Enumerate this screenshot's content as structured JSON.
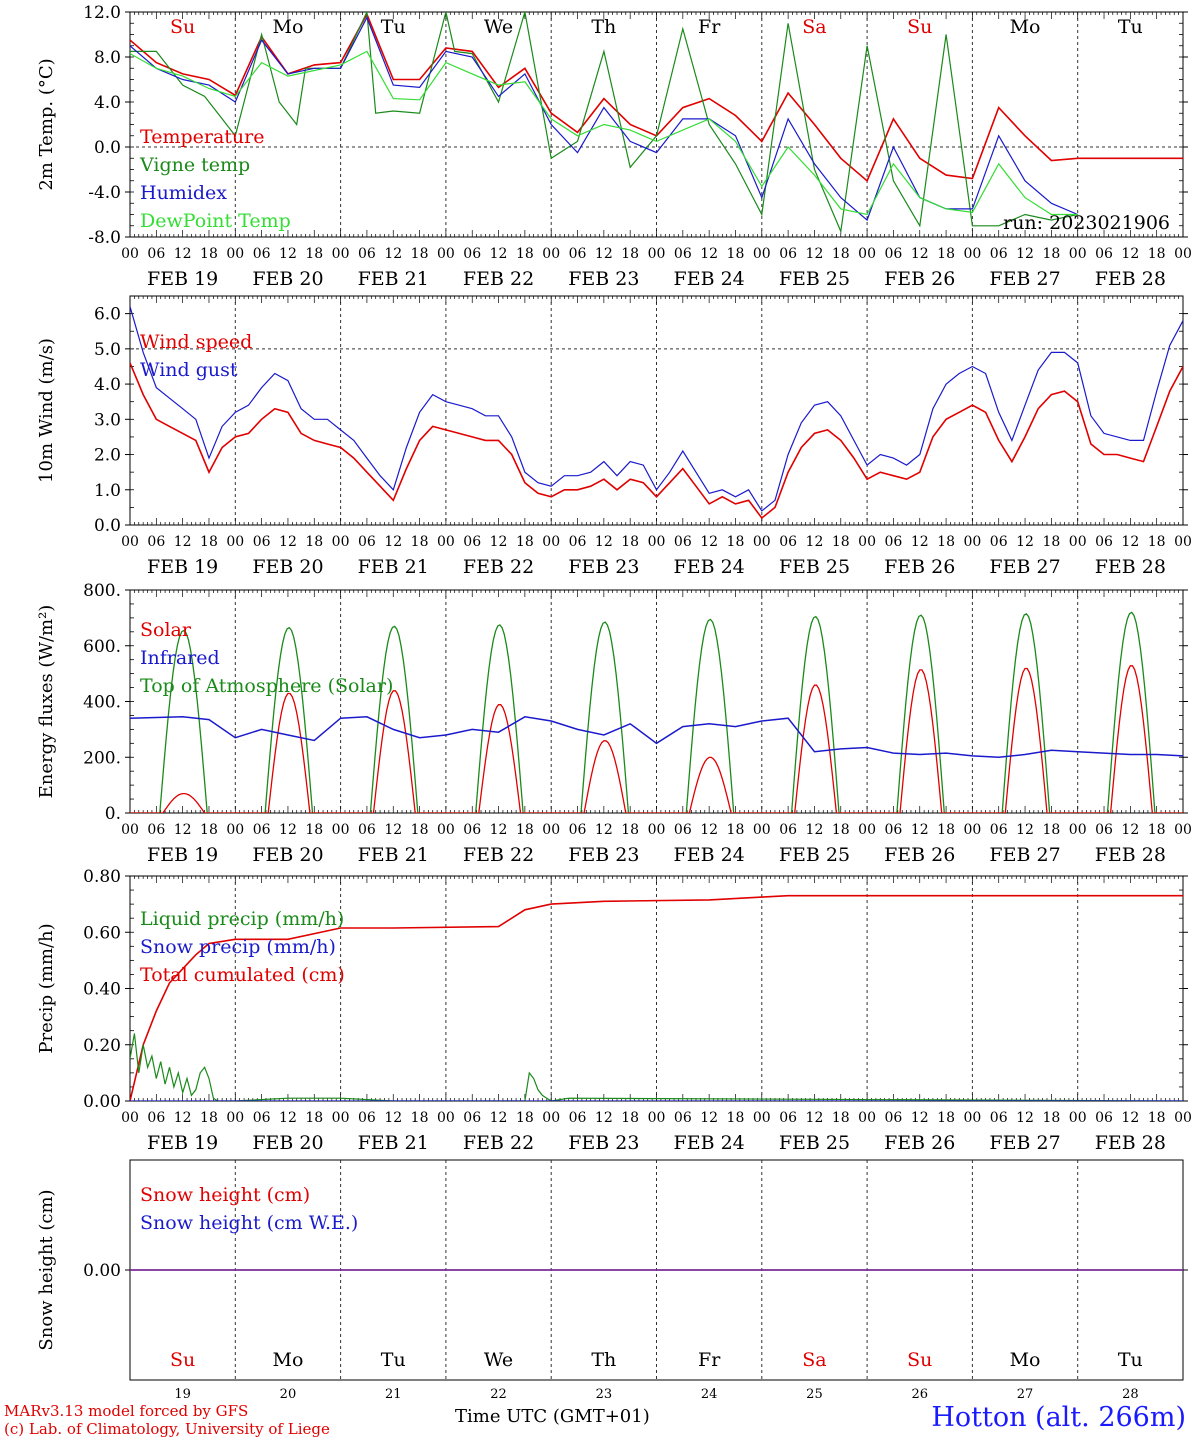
{
  "meta": {
    "credit_line1": "MARv3.13 model forced by GFS",
    "credit_line2": "(c) Lab. of Climatology, University of Liege",
    "time_label": "Time UTC (GMT+01)",
    "station": "Hotton (alt. 266m)",
    "run": "run: 2023021906"
  },
  "colors": {
    "red": "#e00000",
    "green": "#1a8a1a",
    "blue": "#1a1acc",
    "lightgreen": "#33dd33",
    "purple": "#7a2d9a",
    "grid": "#555555"
  },
  "axis": {
    "hour_ticks": [
      "00",
      "06",
      "12",
      "18",
      "00",
      "06",
      "12",
      "18",
      "00",
      "06",
      "12",
      "18",
      "00",
      "06",
      "12",
      "18",
      "00",
      "06",
      "12",
      "18",
      "00",
      "06",
      "12",
      "18",
      "00",
      "06",
      "12",
      "18",
      "00",
      "06",
      "12",
      "18",
      "00",
      "06",
      "12",
      "18",
      "00",
      "06",
      "12",
      "18",
      "00"
    ],
    "day_labels": [
      "FEB 19",
      "FEB 20",
      "FEB 21",
      "FEB 22",
      "FEB 23",
      "FEB 24",
      "FEB 25",
      "FEB 26",
      "FEB 27",
      "FEB 28"
    ],
    "weekdays": [
      "Su",
      "Mo",
      "Tu",
      "We",
      "Th",
      "Fr",
      "Sa",
      "Su",
      "Mo",
      "Tu"
    ],
    "weekend": [
      true,
      false,
      false,
      false,
      false,
      false,
      true,
      true,
      false,
      false
    ],
    "day_numbers": [
      "19",
      "20",
      "21",
      "22",
      "23",
      "24",
      "25",
      "26",
      "27",
      "28"
    ]
  },
  "chart_data": [
    {
      "id": "temperature",
      "type": "line",
      "ylabel": "2m Temp. (°C)",
      "ylim": [
        -8,
        12
      ],
      "yticks": [
        "12.0",
        "8.0",
        "4.0",
        "0.0",
        "-4.0",
        "-8.0"
      ],
      "x_unit": "hours since FEB 19 00 UTC",
      "legend": [
        "Temperature",
        "Vigne temp",
        "Humidex",
        "DewPoint Temp"
      ],
      "series": [
        {
          "name": "Temperature",
          "color": "red",
          "x": [
            0,
            6,
            12,
            18,
            24,
            30,
            36,
            42,
            48,
            54,
            60,
            66,
            72,
            78,
            84,
            90,
            96,
            102,
            108,
            114,
            120,
            126,
            132,
            138,
            144,
            150,
            156,
            162,
            168,
            174,
            180,
            186,
            192,
            198,
            204,
            210,
            216,
            222,
            228,
            234,
            240
          ],
          "values": [
            9.5,
            7.5,
            6.5,
            6.0,
            4.6,
            9.8,
            6.5,
            7.3,
            7.5,
            11.8,
            6.0,
            6.0,
            8.8,
            8.5,
            5.3,
            7.0,
            3.0,
            1.3,
            4.3,
            2.0,
            1.0,
            3.5,
            4.3,
            2.8,
            0.5,
            4.8,
            2.0,
            -1.0,
            -3.0,
            2.5,
            -1.0,
            -2.5,
            -2.8,
            3.5,
            1.0,
            -1.2,
            -1.0,
            -1.0,
            -1.0,
            -1.0,
            -1.0
          ]
        },
        {
          "name": "Vigne temp",
          "color": "green",
          "x": [
            0,
            6,
            8,
            12,
            17,
            20,
            24,
            30,
            34,
            38,
            40,
            44,
            48,
            54,
            56,
            60,
            66,
            72,
            74,
            78,
            84,
            90,
            96,
            102,
            108,
            114,
            120,
            126,
            132,
            138,
            144,
            150,
            156,
            162,
            168,
            174,
            180,
            186,
            192,
            198,
            204,
            210,
            216
          ],
          "values": [
            8.5,
            8.5,
            7.5,
            5.5,
            4.5,
            3.0,
            1.0,
            10.0,
            4.0,
            2.0,
            7.0,
            7.0,
            7.0,
            12.0,
            3.0,
            3.2,
            3.0,
            12.0,
            8.5,
            8.3,
            4.0,
            12.0,
            -1.0,
            0.5,
            8.5,
            -1.8,
            1.0,
            10.5,
            2.0,
            -1.5,
            -6.0,
            11.0,
            -2.0,
            -7.5,
            9.0,
            -3.0,
            -7.0,
            10.0,
            -7.0,
            -7.0,
            -6.0,
            -6.5,
            -6.0
          ]
        },
        {
          "name": "Humidex",
          "color": "blue",
          "x": [
            0,
            6,
            12,
            18,
            24,
            30,
            36,
            42,
            48,
            54,
            60,
            66,
            72,
            78,
            84,
            90,
            96,
            102,
            108,
            114,
            120,
            126,
            132,
            138,
            144,
            150,
            156,
            162,
            168,
            174,
            180,
            186,
            192,
            198,
            204,
            210,
            216
          ],
          "values": [
            9.0,
            7.0,
            6.0,
            5.5,
            4.0,
            9.5,
            6.5,
            7.0,
            7.0,
            11.5,
            5.5,
            5.3,
            8.5,
            8.0,
            4.5,
            6.5,
            2.0,
            -0.5,
            3.5,
            0.5,
            -0.5,
            2.5,
            2.5,
            1.0,
            -4.5,
            2.5,
            -1.5,
            -4.5,
            -6.5,
            0.0,
            -4.5,
            -5.5,
            -5.5,
            1.0,
            -3.0,
            -5.0,
            -6.0
          ]
        },
        {
          "name": "DewPoint Temp",
          "color": "lightgreen",
          "x": [
            0,
            6,
            12,
            18,
            24,
            30,
            36,
            42,
            48,
            54,
            60,
            66,
            72,
            78,
            84,
            90,
            96,
            102,
            108,
            114,
            120,
            126,
            132,
            138,
            144,
            150,
            156,
            162,
            168,
            174,
            180,
            186,
            192,
            198,
            204,
            210,
            216
          ],
          "values": [
            8.3,
            7.0,
            6.3,
            5.2,
            4.5,
            7.5,
            6.3,
            6.8,
            7.3,
            8.5,
            4.3,
            4.2,
            7.5,
            6.5,
            5.5,
            5.8,
            2.5,
            1.0,
            2.0,
            1.5,
            0.5,
            1.5,
            2.5,
            0.5,
            -3.5,
            0.0,
            -2.5,
            -5.5,
            -6.0,
            -1.5,
            -4.5,
            -5.5,
            -5.8,
            -1.5,
            -4.5,
            -6.0,
            -6.0
          ]
        }
      ]
    },
    {
      "id": "wind",
      "type": "line",
      "ylabel": "10m Wind (m/s)",
      "ylim": [
        0,
        6.5
      ],
      "yticks": [
        "6.0",
        "5.0",
        "4.0",
        "3.0",
        "2.0",
        "1.0",
        "0.0"
      ],
      "legend": [
        "Wind speed",
        "Wind gust"
      ],
      "series": [
        {
          "name": "Wind speed",
          "color": "red",
          "x": [
            0,
            3,
            6,
            9,
            12,
            15,
            18,
            21,
            24,
            27,
            30,
            33,
            36,
            39,
            42,
            45,
            48,
            51,
            54,
            57,
            60,
            63,
            66,
            69,
            72,
            75,
            78,
            81,
            84,
            87,
            90,
            93,
            96,
            99,
            102,
            105,
            108,
            111,
            114,
            117,
            120,
            123,
            126,
            129,
            132,
            135,
            138,
            141,
            144,
            147,
            150,
            153,
            156,
            159,
            162,
            165,
            168,
            171,
            174,
            177,
            180,
            183,
            186,
            189,
            192,
            195,
            198,
            201,
            204,
            207,
            210,
            213,
            216,
            219,
            222,
            225,
            228,
            231,
            234,
            237,
            240
          ],
          "values": [
            4.6,
            3.7,
            3.0,
            2.8,
            2.6,
            2.4,
            1.5,
            2.2,
            2.5,
            2.6,
            3.0,
            3.3,
            3.2,
            2.6,
            2.4,
            2.3,
            2.2,
            1.9,
            1.5,
            1.1,
            0.7,
            1.6,
            2.4,
            2.8,
            2.7,
            2.6,
            2.5,
            2.4,
            2.4,
            2.0,
            1.2,
            0.9,
            0.8,
            1.0,
            1.0,
            1.1,
            1.3,
            1.0,
            1.3,
            1.2,
            0.8,
            1.2,
            1.6,
            1.1,
            0.6,
            0.8,
            0.6,
            0.7,
            0.2,
            0.5,
            1.5,
            2.2,
            2.6,
            2.7,
            2.4,
            1.9,
            1.3,
            1.5,
            1.4,
            1.3,
            1.5,
            2.5,
            3.0,
            3.2,
            3.4,
            3.2,
            2.4,
            1.8,
            2.5,
            3.3,
            3.7,
            3.8,
            3.5,
            2.3,
            2.0,
            2.0,
            1.9,
            1.8,
            2.8,
            3.8,
            4.5
          ]
        },
        {
          "name": "Wind gust",
          "color": "blue",
          "x": [
            0,
            3,
            6,
            9,
            12,
            15,
            18,
            21,
            24,
            27,
            30,
            33,
            36,
            39,
            42,
            45,
            48,
            51,
            54,
            57,
            60,
            63,
            66,
            69,
            72,
            75,
            78,
            81,
            84,
            87,
            90,
            93,
            96,
            99,
            102,
            105,
            108,
            111,
            114,
            117,
            120,
            123,
            126,
            129,
            132,
            135,
            138,
            141,
            144,
            147,
            150,
            153,
            156,
            159,
            162,
            165,
            168,
            171,
            174,
            177,
            180,
            183,
            186,
            189,
            192,
            195,
            198,
            201,
            204,
            207,
            210,
            213,
            216,
            219,
            222,
            225,
            228,
            231,
            234,
            237,
            240
          ],
          "values": [
            6.2,
            4.9,
            3.9,
            3.6,
            3.3,
            3.0,
            1.9,
            2.8,
            3.2,
            3.4,
            3.9,
            4.3,
            4.1,
            3.3,
            3.0,
            3.0,
            2.7,
            2.4,
            1.9,
            1.4,
            1.0,
            2.2,
            3.2,
            3.7,
            3.5,
            3.4,
            3.3,
            3.1,
            3.1,
            2.5,
            1.5,
            1.2,
            1.1,
            1.4,
            1.4,
            1.5,
            1.8,
            1.4,
            1.8,
            1.7,
            1.0,
            1.5,
            2.1,
            1.5,
            0.9,
            1.0,
            0.8,
            1.0,
            0.4,
            0.7,
            2.0,
            2.9,
            3.4,
            3.5,
            3.1,
            2.4,
            1.7,
            2.0,
            1.9,
            1.7,
            2.0,
            3.3,
            4.0,
            4.3,
            4.5,
            4.3,
            3.2,
            2.4,
            3.4,
            4.4,
            4.9,
            4.9,
            4.6,
            3.1,
            2.6,
            2.5,
            2.4,
            2.4,
            3.8,
            5.1,
            5.8
          ]
        }
      ]
    },
    {
      "id": "energy",
      "type": "line",
      "ylabel": "Energy fluxes (W/m²)",
      "ylim": [
        0,
        800
      ],
      "yticks": [
        "800.",
        "600.",
        "400.",
        "200.",
        "0."
      ],
      "legend": [
        "Solar",
        "Infrared",
        "Top of Atmosphere (Solar)"
      ],
      "series": [
        {
          "name": "Top of Atmosphere (Solar)",
          "color": "green",
          "peaks": [
            655,
            665,
            670,
            675,
            685,
            695,
            705,
            710,
            715,
            720
          ]
        },
        {
          "name": "Solar",
          "color": "red",
          "peaks": [
            70,
            430,
            440,
            390,
            260,
            200,
            460,
            515,
            520,
            530
          ]
        },
        {
          "name": "Infrared",
          "color": "blue",
          "x": [
            0,
            12,
            18,
            24,
            30,
            36,
            42,
            48,
            54,
            60,
            66,
            72,
            78,
            84,
            90,
            96,
            102,
            108,
            114,
            120,
            126,
            132,
            138,
            144,
            150,
            156,
            162,
            168,
            174,
            180,
            186,
            192,
            198,
            204,
            210,
            216,
            222,
            228,
            234,
            240
          ],
          "values": [
            340,
            345,
            335,
            270,
            300,
            280,
            260,
            340,
            345,
            300,
            270,
            280,
            300,
            290,
            345,
            330,
            300,
            280,
            320,
            250,
            310,
            320,
            310,
            330,
            340,
            220,
            230,
            235,
            215,
            210,
            215,
            205,
            200,
            210,
            225,
            220,
            215,
            210,
            210,
            205
          ]
        }
      ]
    },
    {
      "id": "precip",
      "type": "line",
      "ylabel": "Precip (mm/h)",
      "ylim": [
        0,
        0.8
      ],
      "yticks": [
        "0.80",
        "0.60",
        "0.40",
        "0.20",
        "0.00"
      ],
      "legend": [
        "Liquid precip (mm/h)",
        "Snow precip (mm/h)",
        "Total cumulated (cm)"
      ],
      "series": [
        {
          "name": "Total cumulated (cm)",
          "color": "red",
          "x": [
            0,
            3,
            6,
            9,
            12,
            15,
            18,
            24,
            36,
            48,
            60,
            84,
            90,
            96,
            108,
            132,
            144,
            150,
            156,
            240
          ],
          "values": [
            0.0,
            0.2,
            0.32,
            0.42,
            0.47,
            0.52,
            0.56,
            0.575,
            0.575,
            0.615,
            0.615,
            0.62,
            0.68,
            0.7,
            0.71,
            0.715,
            0.725,
            0.73,
            0.73,
            0.73
          ]
        },
        {
          "name": "Liquid precip (mm/h)",
          "color": "green",
          "x": [
            0,
            1,
            2,
            3,
            4,
            5,
            6,
            7,
            8,
            9,
            10,
            11,
            12,
            13,
            14,
            15,
            16,
            17,
            18,
            19,
            20,
            24,
            36,
            48,
            60,
            84,
            90,
            91,
            92,
            93,
            94,
            95,
            96,
            100,
            240
          ],
          "values": [
            0.15,
            0.24,
            0.1,
            0.2,
            0.12,
            0.16,
            0.08,
            0.14,
            0.06,
            0.12,
            0.05,
            0.1,
            0.03,
            0.08,
            0.02,
            0.04,
            0.1,
            0.12,
            0.08,
            0.01,
            0.0,
            0.0,
            0.01,
            0.01,
            0.0,
            0.0,
            0.0,
            0.1,
            0.08,
            0.04,
            0.02,
            0.01,
            0.0,
            0.01,
            0.0
          ]
        },
        {
          "name": "Snow precip (mm/h)",
          "color": "blue",
          "x": [
            0,
            240
          ],
          "values": [
            0,
            0
          ]
        }
      ]
    },
    {
      "id": "snow",
      "type": "line",
      "ylabel": "Snow height (cm)",
      "ylim": [
        -1,
        1
      ],
      "yticks": [
        "0.00"
      ],
      "legend": [
        "Snow height (cm)",
        "Snow height (cm W.E.)"
      ],
      "series": [
        {
          "name": "Snow height (cm)",
          "color": "red",
          "x": [
            0,
            240
          ],
          "values": [
            0,
            0
          ]
        },
        {
          "name": "Snow height (cm W.E.)",
          "color": "blue",
          "x": [
            0,
            240
          ],
          "values": [
            0,
            0
          ]
        }
      ]
    }
  ]
}
